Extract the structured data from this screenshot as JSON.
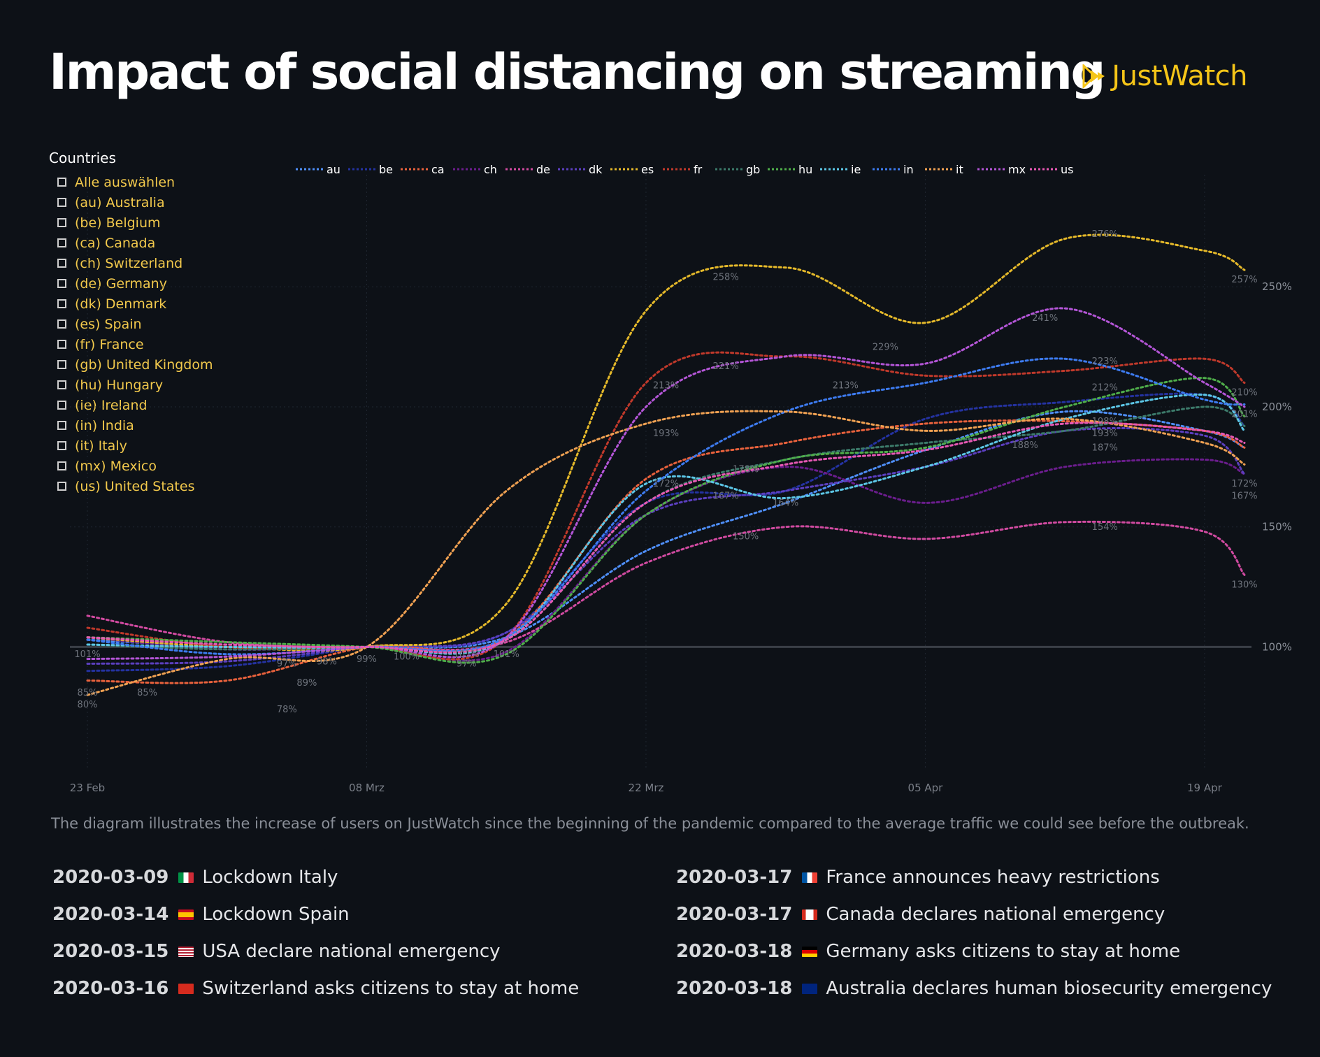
{
  "title": "Impact of social distancing on streaming",
  "logo": {
    "text": "JustWatch",
    "icon": "play-triangles-icon",
    "color": "#f5c518"
  },
  "countries_panel": {
    "heading": "Countries",
    "items": [
      "Alle auswählen",
      "(au) Australia",
      "(be) Belgium",
      "(ca) Canada",
      "(ch) Switzerland",
      "(de) Germany",
      "(dk) Denmark",
      "(es) Spain",
      "(fr) France",
      "(gb) United Kingdom",
      "(hu) Hungary",
      "(ie) Ireland",
      "(in) India",
      "(it) Italy",
      "(mx) Mexico",
      "(us) United States"
    ]
  },
  "caption": "The diagram illustrates the increase of users on JustWatch since the beginning of the pandemic compared to the average traffic we could see before the outbreak.",
  "events": [
    {
      "date": "2020-03-09",
      "flag": "it",
      "text": "Lockdown Italy"
    },
    {
      "date": "2020-03-14",
      "flag": "es",
      "text": "Lockdown Spain"
    },
    {
      "date": "2020-03-15",
      "flag": "us",
      "text": "USA declare national emergency"
    },
    {
      "date": "2020-03-16",
      "flag": "ch",
      "text": "Switzerland asks citizens to stay at home"
    },
    {
      "date": "2020-03-17",
      "flag": "fr",
      "text": "France announces heavy restrictions"
    },
    {
      "date": "2020-03-17",
      "flag": "ca",
      "text": "Canada declares national emergency"
    },
    {
      "date": "2020-03-18",
      "flag": "de",
      "text": "Germany asks citizens to stay at home"
    },
    {
      "date": "2020-03-18",
      "flag": "au",
      "text": "Australia declares human biosecurity emergency"
    }
  ],
  "chart_data": {
    "type": "line",
    "x": [
      "2020-02-23",
      "2020-03-01",
      "2020-03-08",
      "2020-03-15",
      "2020-03-22",
      "2020-03-29",
      "2020-04-05",
      "2020-04-12",
      "2020-04-19",
      "2020-04-21"
    ],
    "x_ticks": [
      "23 Feb",
      "08 Mrz",
      "22 Mrz",
      "05 Apr",
      "19 Apr"
    ],
    "x_tick_positions": [
      0,
      14,
      28,
      42,
      56
    ],
    "y_unit": "%",
    "y_ticks": [
      "100%",
      "150%",
      "200%",
      "250%"
    ],
    "y_tick_values": [
      100,
      150,
      200,
      250
    ],
    "ylim": [
      55,
      285
    ],
    "legend_position": "top",
    "grid": true,
    "series": [
      {
        "name": "au",
        "color": "#4e8ef7",
        "values": [
          103,
          100,
          100,
          104,
          140,
          160,
          182,
          198,
          190,
          183
        ]
      },
      {
        "name": "be",
        "color": "#2432a0",
        "values": [
          90,
          92,
          100,
          106,
          160,
          165,
          195,
          202,
          205,
          192
        ]
      },
      {
        "name": "ca",
        "color": "#e8613c",
        "values": [
          86,
          86,
          100,
          104,
          170,
          185,
          193,
          194,
          190,
          183
        ]
      },
      {
        "name": "ch",
        "color": "#6a1d8c",
        "values": [
          104,
          99,
          100,
          98,
          155,
          175,
          160,
          175,
          178,
          172
        ]
      },
      {
        "name": "de",
        "color": "#d04aa0",
        "values": [
          113,
          102,
          100,
          102,
          135,
          150,
          145,
          152,
          148,
          130
        ]
      },
      {
        "name": "dk",
        "color": "#5b3fbf",
        "values": [
          93,
          94,
          100,
          106,
          155,
          165,
          175,
          190,
          188,
          172
        ]
      },
      {
        "name": "es",
        "color": "#e5b92a",
        "values": [
          104,
          100,
          100,
          118,
          240,
          258,
          235,
          270,
          265,
          257
        ]
      },
      {
        "name": "fr",
        "color": "#c0392b",
        "values": [
          108,
          100,
          100,
          104,
          210,
          221,
          213,
          215,
          220,
          210
        ]
      },
      {
        "name": "gb",
        "color": "#3c7a6a",
        "values": [
          101,
          99,
          100,
          103,
          160,
          178,
          185,
          190,
          200,
          192
        ]
      },
      {
        "name": "hu",
        "color": "#4fae4a",
        "values": [
          104,
          102,
          100,
          97,
          155,
          178,
          183,
          200,
          212,
          196
        ]
      },
      {
        "name": "ie",
        "color": "#5cc6e6",
        "values": [
          101,
          100,
          100,
          103,
          168,
          162,
          175,
          195,
          205,
          190
        ]
      },
      {
        "name": "in",
        "color": "#3d7bf0",
        "values": [
          103,
          97,
          100,
          104,
          165,
          198,
          210,
          220,
          203,
          201
        ]
      },
      {
        "name": "it",
        "color": "#f0a152",
        "values": [
          80,
          95,
          100,
          165,
          193,
          198,
          190,
          195,
          185,
          176
        ]
      },
      {
        "name": "mx",
        "color": "#b355d6",
        "values": [
          95,
          96,
          100,
          104,
          200,
          221,
          218,
          241,
          210,
          200
        ]
      },
      {
        "name": "us",
        "color": "#e658b4",
        "values": [
          104,
          101,
          100,
          103,
          160,
          176,
          182,
          193,
          190,
          185
        ]
      }
    ],
    "annotations": [
      {
        "x": "2020-02-23",
        "y": 101,
        "text": "101%"
      },
      {
        "x": "2020-02-23",
        "y": 85,
        "text": "85%"
      },
      {
        "x": "2020-02-23",
        "y": 80,
        "text": "80%"
      },
      {
        "x": "2020-02-26",
        "y": 85,
        "text": "85%"
      },
      {
        "x": "2020-03-04",
        "y": 97,
        "text": "97%"
      },
      {
        "x": "2020-03-04",
        "y": 78,
        "text": "78%"
      },
      {
        "x": "2020-03-06",
        "y": 98,
        "text": "98%"
      },
      {
        "x": "2020-03-05",
        "y": 89,
        "text": "89%"
      },
      {
        "x": "2020-03-08",
        "y": 99,
        "text": "99%"
      },
      {
        "x": "2020-03-10",
        "y": 100,
        "text": "100%"
      },
      {
        "x": "2020-03-13",
        "y": 101,
        "text": "101%"
      },
      {
        "x": "2020-03-13",
        "y": 97,
        "text": "97%"
      },
      {
        "x": "2020-03-15",
        "y": 101,
        "text": "101%"
      },
      {
        "x": "2020-03-23",
        "y": 213,
        "text": "213%"
      },
      {
        "x": "2020-03-23",
        "y": 193,
        "text": "193%"
      },
      {
        "x": "2020-03-23",
        "y": 172,
        "text": "172%"
      },
      {
        "x": "2020-03-26",
        "y": 258,
        "text": "258%"
      },
      {
        "x": "2020-03-26",
        "y": 221,
        "text": "221%"
      },
      {
        "x": "2020-03-26",
        "y": 167,
        "text": "167%"
      },
      {
        "x": "2020-03-27",
        "y": 178,
        "text": "178%"
      },
      {
        "x": "2020-03-27",
        "y": 150,
        "text": "150%"
      },
      {
        "x": "2020-03-29",
        "y": 164,
        "text": "164%"
      },
      {
        "x": "2020-04-01",
        "y": 213,
        "text": "213%"
      },
      {
        "x": "2020-04-03",
        "y": 229,
        "text": "229%"
      },
      {
        "x": "2020-04-10",
        "y": 188,
        "text": "188%"
      },
      {
        "x": "2020-04-11",
        "y": 241,
        "text": "241%"
      },
      {
        "x": "2020-04-14",
        "y": 276,
        "text": "276%"
      },
      {
        "x": "2020-04-14",
        "y": 223,
        "text": "223%"
      },
      {
        "x": "2020-04-14",
        "y": 212,
        "text": "212%"
      },
      {
        "x": "2020-04-14",
        "y": 198,
        "text": "198%"
      },
      {
        "x": "2020-04-14",
        "y": 193,
        "text": "193%"
      },
      {
        "x": "2020-04-14",
        "y": 187,
        "text": "187%"
      },
      {
        "x": "2020-04-14",
        "y": 154,
        "text": "154%"
      },
      {
        "x": "2020-04-21",
        "y": 257,
        "text": "257%"
      },
      {
        "x": "2020-04-21",
        "y": 210,
        "text": "210%"
      },
      {
        "x": "2020-04-21",
        "y": 201,
        "text": "201%"
      },
      {
        "x": "2020-04-21",
        "y": 172,
        "text": "172%"
      },
      {
        "x": "2020-04-21",
        "y": 167,
        "text": "167%"
      },
      {
        "x": "2020-04-21",
        "y": 130,
        "text": "130%"
      }
    ]
  }
}
